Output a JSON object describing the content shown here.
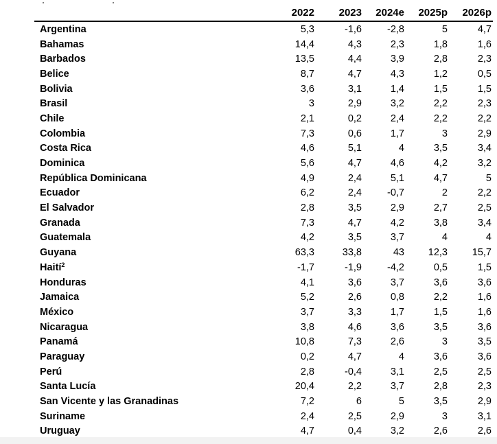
{
  "table": {
    "columns": [
      "2022",
      "2023",
      "2024e",
      "2025p",
      "2026p"
    ],
    "rows": [
      {
        "name": "Argentina",
        "sup": "",
        "values": [
          "5,3",
          "-1,6",
          "-2,8",
          "5",
          "4,7"
        ]
      },
      {
        "name": "Bahamas",
        "sup": "",
        "values": [
          "14,4",
          "4,3",
          "2,3",
          "1,8",
          "1,6"
        ]
      },
      {
        "name": "Barbados",
        "sup": "",
        "values": [
          "13,5",
          "4,4",
          "3,9",
          "2,8",
          "2,3"
        ]
      },
      {
        "name": "Belice",
        "sup": "",
        "values": [
          "8,7",
          "4,7",
          "4,3",
          "1,2",
          "0,5"
        ]
      },
      {
        "name": "Bolivia",
        "sup": "",
        "values": [
          "3,6",
          "3,1",
          "1,4",
          "1,5",
          "1,5"
        ]
      },
      {
        "name": "Brasil",
        "sup": "",
        "values": [
          "3",
          "2,9",
          "3,2",
          "2,2",
          "2,3"
        ]
      },
      {
        "name": "Chile",
        "sup": "",
        "values": [
          "2,1",
          "0,2",
          "2,4",
          "2,2",
          "2,2"
        ]
      },
      {
        "name": "Colombia",
        "sup": "",
        "values": [
          "7,3",
          "0,6",
          "1,7",
          "3",
          "2,9"
        ]
      },
      {
        "name": "Costa Rica",
        "sup": "",
        "values": [
          "4,6",
          "5,1",
          "4",
          "3,5",
          "3,4"
        ]
      },
      {
        "name": "Dominica",
        "sup": "",
        "values": [
          "5,6",
          "4,7",
          "4,6",
          "4,2",
          "3,2"
        ]
      },
      {
        "name": "República Dominicana",
        "sup": "",
        "values": [
          "4,9",
          "2,4",
          "5,1",
          "4,7",
          "5"
        ]
      },
      {
        "name": "Ecuador",
        "sup": "",
        "values": [
          "6,2",
          "2,4",
          "-0,7",
          "2",
          "2,2"
        ]
      },
      {
        "name": "El Salvador",
        "sup": "",
        "values": [
          "2,8",
          "3,5",
          "2,9",
          "2,7",
          "2,5"
        ]
      },
      {
        "name": "Granada",
        "sup": "",
        "values": [
          "7,3",
          "4,7",
          "4,2",
          "3,8",
          "3,4"
        ]
      },
      {
        "name": "Guatemala",
        "sup": "",
        "values": [
          "4,2",
          "3,5",
          "3,7",
          "4",
          "4"
        ]
      },
      {
        "name": "Guyana",
        "sup": "",
        "values": [
          "63,3",
          "33,8",
          "43",
          "12,3",
          "15,7"
        ]
      },
      {
        "name": "Haití",
        "sup": "2",
        "values": [
          "-1,7",
          "-1,9",
          "-4,2",
          "0,5",
          "1,5"
        ]
      },
      {
        "name": "Honduras",
        "sup": "",
        "values": [
          "4,1",
          "3,6",
          "3,7",
          "3,6",
          "3,6"
        ]
      },
      {
        "name": "Jamaica",
        "sup": "",
        "values": [
          "5,2",
          "2,6",
          "0,8",
          "2,2",
          "1,6"
        ]
      },
      {
        "name": "México",
        "sup": "",
        "values": [
          "3,7",
          "3,3",
          "1,7",
          "1,5",
          "1,6"
        ]
      },
      {
        "name": "Nicaragua",
        "sup": "",
        "values": [
          "3,8",
          "4,6",
          "3,6",
          "3,5",
          "3,6"
        ]
      },
      {
        "name": "Panamá",
        "sup": "",
        "values": [
          "10,8",
          "7,3",
          "2,6",
          "3",
          "3,5"
        ]
      },
      {
        "name": "Paraguay",
        "sup": "",
        "values": [
          "0,2",
          "4,7",
          "4",
          "3,6",
          "3,6"
        ]
      },
      {
        "name": "Perú",
        "sup": "",
        "values": [
          "2,8",
          "-0,4",
          "3,1",
          "2,5",
          "2,5"
        ]
      },
      {
        "name": "Santa Lucía",
        "sup": "",
        "values": [
          "20,4",
          "2,2",
          "3,7",
          "2,8",
          "2,3"
        ]
      },
      {
        "name": "San Vicente y las Granadinas",
        "sup": "",
        "values": [
          "7,2",
          "6",
          "5",
          "3,5",
          "2,9"
        ]
      },
      {
        "name": "Suriname",
        "sup": "",
        "values": [
          "2,4",
          "2,5",
          "2,9",
          "3",
          "3,1"
        ]
      },
      {
        "name": "Uruguay",
        "sup": "",
        "values": [
          "4,7",
          "0,4",
          "3,2",
          "2,6",
          "2,6"
        ]
      }
    ]
  }
}
